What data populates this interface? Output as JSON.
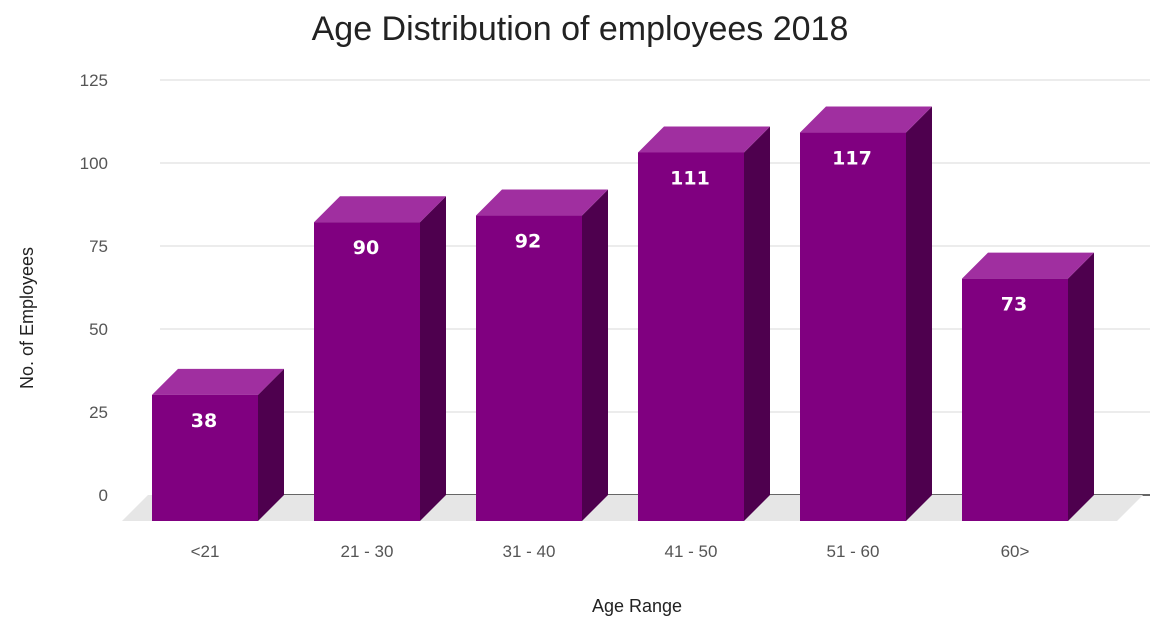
{
  "chart_data": {
    "type": "bar",
    "title": "Age Distribution of employees 2018",
    "xlabel": "Age Range",
    "ylabel": "No. of Employees",
    "categories": [
      "<21",
      "21 - 30",
      "31 - 40",
      "41 - 50",
      "51 - 60",
      "60>"
    ],
    "values": [
      38,
      90,
      92,
      111,
      117,
      73
    ],
    "data_labels": [
      "38",
      "90",
      "92",
      "111",
      "117",
      "73"
    ],
    "yticks": [
      0,
      25,
      50,
      75,
      100,
      125
    ],
    "ylim": [
      0,
      125
    ],
    "grid": true,
    "legend": "none",
    "style": "3d-column",
    "colors": {
      "bar_front": "#800080",
      "bar_top": "#a02fa0",
      "bar_side": "#4e004e",
      "floor": "#e6e6e6"
    }
  }
}
